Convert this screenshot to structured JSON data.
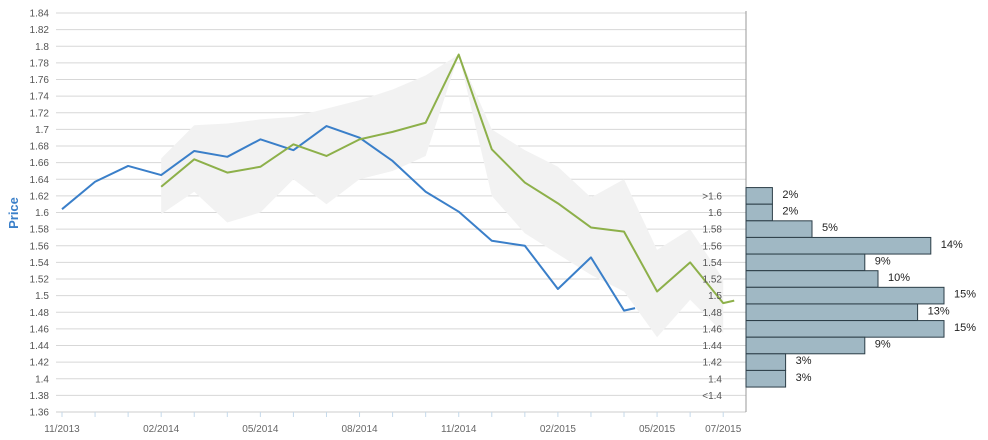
{
  "chart_data": {
    "type": "line",
    "ylabel": "Price",
    "ylim": [
      1.36,
      1.84
    ],
    "y_ticks": [
      "1.84",
      "1.82",
      "1.8",
      "1.78",
      "1.76",
      "1.74",
      "1.72",
      "1.7",
      "1.68",
      "1.66",
      "1.64",
      "1.62",
      "1.6",
      "1.58",
      "1.56",
      "1.54",
      "1.52",
      "1.5",
      "1.48",
      "1.46",
      "1.44",
      "1.42",
      "1.4",
      "1.38",
      "1.36"
    ],
    "x_tick_labels": [
      "11/2013",
      "02/2014",
      "05/2014",
      "08/2014",
      "11/2014",
      "02/2015",
      "05/2015",
      "07/2015"
    ],
    "x_months": [
      "2013-11",
      "2014-02",
      "2014-05",
      "2014-08",
      "2014-11",
      "2015-02",
      "2015-05",
      "2015-07"
    ],
    "grid": true,
    "series": [
      {
        "color": "#3a7fc9",
        "points": [
          [
            "2013-11",
            1.604
          ],
          [
            "2013-12",
            1.637
          ],
          [
            "2014-01",
            1.656
          ],
          [
            "2014-02",
            1.645
          ],
          [
            "2014-03",
            1.674
          ],
          [
            "2014-04",
            1.667
          ],
          [
            "2014-05",
            1.688
          ],
          [
            "2014-06",
            1.675
          ],
          [
            "2014-07",
            1.704
          ],
          [
            "2014-08",
            1.69
          ],
          [
            "2014-09",
            1.662
          ],
          [
            "2014-10",
            1.625
          ],
          [
            "2014-11",
            1.601
          ],
          [
            "2014-12",
            1.566
          ],
          [
            "2015-01",
            1.56
          ],
          [
            "2015-02",
            1.508
          ],
          [
            "2015-03",
            1.546
          ],
          [
            "2015-04",
            1.482
          ],
          [
            "2015-04-10",
            1.485
          ]
        ]
      },
      {
        "color": "#8db04a",
        "points": [
          [
            "2014-02",
            1.631
          ],
          [
            "2014-03",
            1.664
          ],
          [
            "2014-04",
            1.648
          ],
          [
            "2014-05",
            1.655
          ],
          [
            "2014-06",
            1.682
          ],
          [
            "2014-07",
            1.668
          ],
          [
            "2014-08",
            1.688
          ],
          [
            "2014-09",
            1.697
          ],
          [
            "2014-10",
            1.708
          ],
          [
            "2014-11",
            1.79
          ],
          [
            "2014-12",
            1.676
          ],
          [
            "2015-01",
            1.636
          ],
          [
            "2015-02",
            1.611
          ],
          [
            "2015-03",
            1.582
          ],
          [
            "2015-04",
            1.577
          ],
          [
            "2015-05",
            1.505
          ],
          [
            "2015-06",
            1.54
          ],
          [
            "2015-07",
            1.491
          ],
          [
            "2015-07-10",
            1.494
          ]
        ]
      }
    ],
    "band": {
      "color": "#f2f2f2",
      "upper": [
        [
          "2014-02",
          1.665
        ],
        [
          "2014-03",
          1.705
        ],
        [
          "2014-04",
          1.707
        ],
        [
          "2014-05",
          1.712
        ],
        [
          "2014-06",
          1.715
        ],
        [
          "2014-07",
          1.725
        ],
        [
          "2014-08",
          1.735
        ],
        [
          "2014-09",
          1.748
        ],
        [
          "2014-10",
          1.765
        ],
        [
          "2014-11",
          1.79
        ],
        [
          "2014-12",
          1.7
        ],
        [
          "2015-01",
          1.675
        ],
        [
          "2015-02",
          1.655
        ],
        [
          "2015-03",
          1.618
        ],
        [
          "2015-04",
          1.64
        ],
        [
          "2015-05",
          1.555
        ],
        [
          "2015-06",
          1.58
        ],
        [
          "2015-07",
          1.52
        ]
      ],
      "lower": [
        [
          "2014-02",
          1.598
        ],
        [
          "2014-03",
          1.625
        ],
        [
          "2014-04",
          1.588
        ],
        [
          "2014-05",
          1.6
        ],
        [
          "2014-06",
          1.64
        ],
        [
          "2014-07",
          1.61
        ],
        [
          "2014-08",
          1.64
        ],
        [
          "2014-09",
          1.65
        ],
        [
          "2014-10",
          1.668
        ],
        [
          "2014-11",
          1.79
        ],
        [
          "2014-12",
          1.62
        ],
        [
          "2015-01",
          1.575
        ],
        [
          "2015-02",
          1.55
        ],
        [
          "2015-03",
          1.525
        ],
        [
          "2015-04",
          1.505
        ],
        [
          "2015-05",
          1.45
        ],
        [
          "2015-06",
          1.495
        ],
        [
          "2015-07",
          1.455
        ]
      ]
    },
    "distribution": {
      "bar_color": "#a0b8c4",
      "bins": [
        {
          "label": ">1.6",
          "center": 1.62,
          "pct_label": "2%",
          "value": 2
        },
        {
          "label": "1.6",
          "center": 1.6,
          "pct_label": "2%",
          "value": 2
        },
        {
          "label": "1.58",
          "center": 1.58,
          "pct_label": "5%",
          "value": 5
        },
        {
          "label": "1.56",
          "center": 1.56,
          "pct_label": "14%",
          "value": 14
        },
        {
          "label": "1.54",
          "center": 1.54,
          "pct_label": "9%",
          "value": 9
        },
        {
          "label": "1.52",
          "center": 1.52,
          "pct_label": "10%",
          "value": 10
        },
        {
          "label": "1.5",
          "center": 1.5,
          "pct_label": "15%",
          "value": 15
        },
        {
          "label": "1.48",
          "center": 1.48,
          "pct_label": "13%",
          "value": 13
        },
        {
          "label": "1.46",
          "center": 1.46,
          "pct_label": "15%",
          "value": 15
        },
        {
          "label": "1.44",
          "center": 1.44,
          "pct_label": "9%",
          "value": 9
        },
        {
          "label": "1.42",
          "center": 1.42,
          "pct_label": "3%",
          "value": 3
        },
        {
          "label": "1.4",
          "center": 1.4,
          "pct_label": "3%",
          "value": 3
        },
        {
          "label": "<1.4",
          "center": 1.38,
          "pct_label": "",
          "value": 0
        }
      ]
    }
  }
}
